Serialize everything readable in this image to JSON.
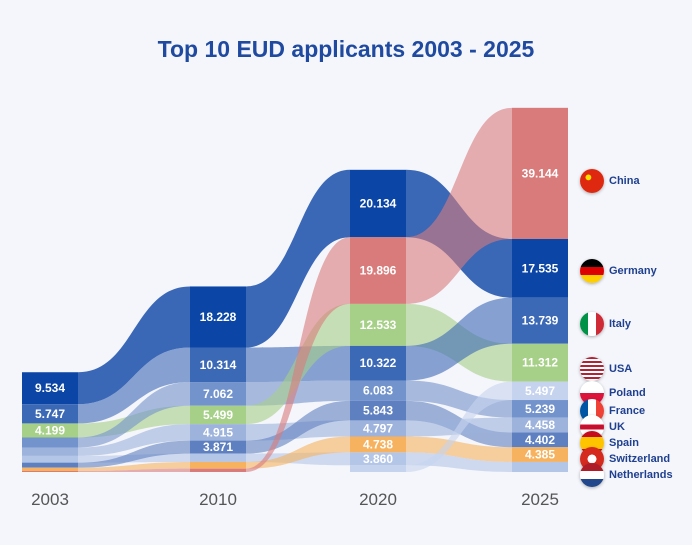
{
  "chart_data": {
    "type": "bump-stacked-flow",
    "title": "Top 10 EUD applicants 2003 - 2025",
    "years": [
      "2003",
      "2010",
      "2020",
      "2025"
    ],
    "country_colors": {
      "China": "#d97b7b",
      "Germany": "#0b45a5",
      "USA": "#3c69b6",
      "Italy": "#a6cf88",
      "Spain": "#f6b25e",
      "France": "#7393cc",
      "UK": "#9db3dc",
      "Switzerland": "#5f80c0",
      "Netherlands": "#b4c6e7",
      "Poland": "#c6d3ee"
    },
    "columns": [
      {
        "year": "2003",
        "segments": [
          {
            "country": "Germany",
            "value": 9534,
            "label": "9.534"
          },
          {
            "country": "USA",
            "value": 5747,
            "label": "5.747"
          },
          {
            "country": "Italy",
            "value": 4199,
            "label": "4.199"
          },
          {
            "country": "France",
            "value": 3000,
            "label": null
          },
          {
            "country": "UK",
            "value": 2500,
            "label": null
          },
          {
            "country": "Netherlands",
            "value": 2000,
            "label": null
          },
          {
            "country": "Switzerland",
            "value": 1500,
            "label": null
          },
          {
            "country": "Spain",
            "value": 1000,
            "label": null
          },
          {
            "country": "China",
            "value": 300,
            "label": null
          }
        ]
      },
      {
        "year": "2010",
        "segments": [
          {
            "country": "Germany",
            "value": 18228,
            "label": "18.228"
          },
          {
            "country": "USA",
            "value": 10314,
            "label": "10.314"
          },
          {
            "country": "France",
            "value": 7062,
            "label": "7.062"
          },
          {
            "country": "Italy",
            "value": 5499,
            "label": "5.499"
          },
          {
            "country": "UK",
            "value": 4915,
            "label": "4.915"
          },
          {
            "country": "Switzerland",
            "value": 3871,
            "label": "3.871"
          },
          {
            "country": "Netherlands",
            "value": 2500,
            "label": null
          },
          {
            "country": "Spain",
            "value": 2000,
            "label": null
          },
          {
            "country": "China",
            "value": 1000,
            "label": null
          }
        ]
      },
      {
        "year": "2020",
        "segments": [
          {
            "country": "Germany",
            "value": 20134,
            "label": "20.134"
          },
          {
            "country": "China",
            "value": 19896,
            "label": "19.896"
          },
          {
            "country": "Italy",
            "value": 12533,
            "label": "12.533"
          },
          {
            "country": "USA",
            "value": 10322,
            "label": "10.322"
          },
          {
            "country": "France",
            "value": 6083,
            "label": "6.083"
          },
          {
            "country": "Switzerland",
            "value": 5843,
            "label": "5.843"
          },
          {
            "country": "UK",
            "value": 4797,
            "label": "4.797"
          },
          {
            "country": "Spain",
            "value": 4738,
            "label": "4.738"
          },
          {
            "country": "Netherlands",
            "value": 3860,
            "label": "3.860"
          },
          {
            "country": "Poland",
            "value": 2000,
            "label": null
          }
        ]
      },
      {
        "year": "2025",
        "segments": [
          {
            "country": "China",
            "value": 39144,
            "label": "39.144"
          },
          {
            "country": "Germany",
            "value": 17535,
            "label": "17.535"
          },
          {
            "country": "USA",
            "value": 13739,
            "label": "13.739"
          },
          {
            "country": "Italy",
            "value": 11312,
            "label": "11.312"
          },
          {
            "country": "Poland",
            "value": 5497,
            "label": "5.497"
          },
          {
            "country": "France",
            "value": 5239,
            "label": "5.239"
          },
          {
            "country": "UK",
            "value": 4458,
            "label": "4.458"
          },
          {
            "country": "Switzerland",
            "value": 4402,
            "label": "4.402"
          },
          {
            "country": "Spain",
            "value": 4385,
            "label": "4.385"
          },
          {
            "country": "Netherlands",
            "value": 3000,
            "label": null
          }
        ]
      }
    ],
    "legend": [
      "China",
      "Germany",
      "Italy",
      "USA",
      "Poland",
      "France",
      "UK",
      "Spain",
      "Switzerland",
      "Netherlands"
    ]
  }
}
